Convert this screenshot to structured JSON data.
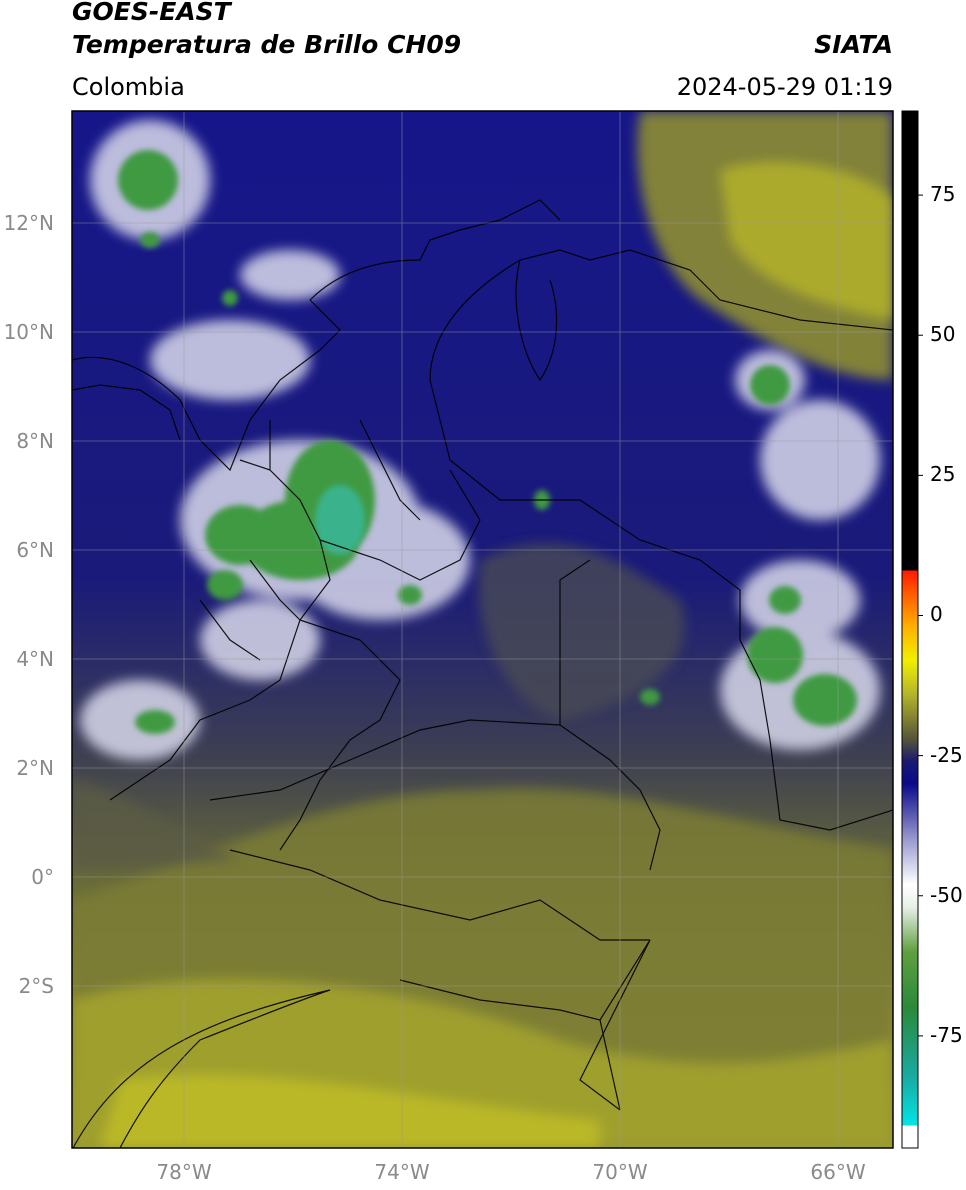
{
  "header": {
    "satellite": "GOES-EAST",
    "product": "Temperatura de Brillo CH09",
    "region": "Colombia",
    "organization": "SIATA",
    "datetime": "2024-05-29 01:19"
  },
  "map": {
    "lat_ticks": [
      "12°N",
      "10°N",
      "8°N",
      "6°N",
      "4°N",
      "2°N",
      "0°",
      "2°S"
    ],
    "lon_ticks": [
      "78°W",
      "74°W",
      "70°W",
      "66°W"
    ],
    "colors": {
      "warm_olive": "#b9b82a",
      "dark_olive": "#5a5c38",
      "navy": "#0e0d8a",
      "cloud_white": "#e8e8f4",
      "cold_green": "#3e9a3e",
      "coldest_teal": "#33c4b0"
    }
  },
  "colorbar": {
    "ticks": [
      "75",
      "50",
      "25",
      "0",
      "-25",
      "-50",
      "-75"
    ],
    "tick_values": [
      75,
      50,
      25,
      0,
      -25,
      -50,
      -75
    ],
    "range": [
      -95,
      90
    ],
    "stops": [
      {
        "v": -95,
        "c": "#ffffff"
      },
      {
        "v": -91,
        "c": "#ffffff"
      },
      {
        "v": -91,
        "c": "#00e5e5"
      },
      {
        "v": -82,
        "c": "#1aa9a0"
      },
      {
        "v": -70,
        "c": "#2a8a3a"
      },
      {
        "v": -60,
        "c": "#5fa040"
      },
      {
        "v": -52,
        "c": "#e8f0e8"
      },
      {
        "v": -48,
        "c": "#ffffff"
      },
      {
        "v": -40,
        "c": "#9a9acf"
      },
      {
        "v": -30,
        "c": "#0a0a8a"
      },
      {
        "v": -26,
        "c": "#1a1a70"
      },
      {
        "v": -22,
        "c": "#55563a"
      },
      {
        "v": -14,
        "c": "#b5b52a"
      },
      {
        "v": -8,
        "c": "#f0f000"
      },
      {
        "v": -2,
        "c": "#ffb000"
      },
      {
        "v": 4,
        "c": "#ff5a00"
      },
      {
        "v": 8,
        "c": "#ff1a00"
      },
      {
        "v": 8,
        "c": "#000000"
      },
      {
        "v": 90,
        "c": "#000000"
      }
    ]
  }
}
